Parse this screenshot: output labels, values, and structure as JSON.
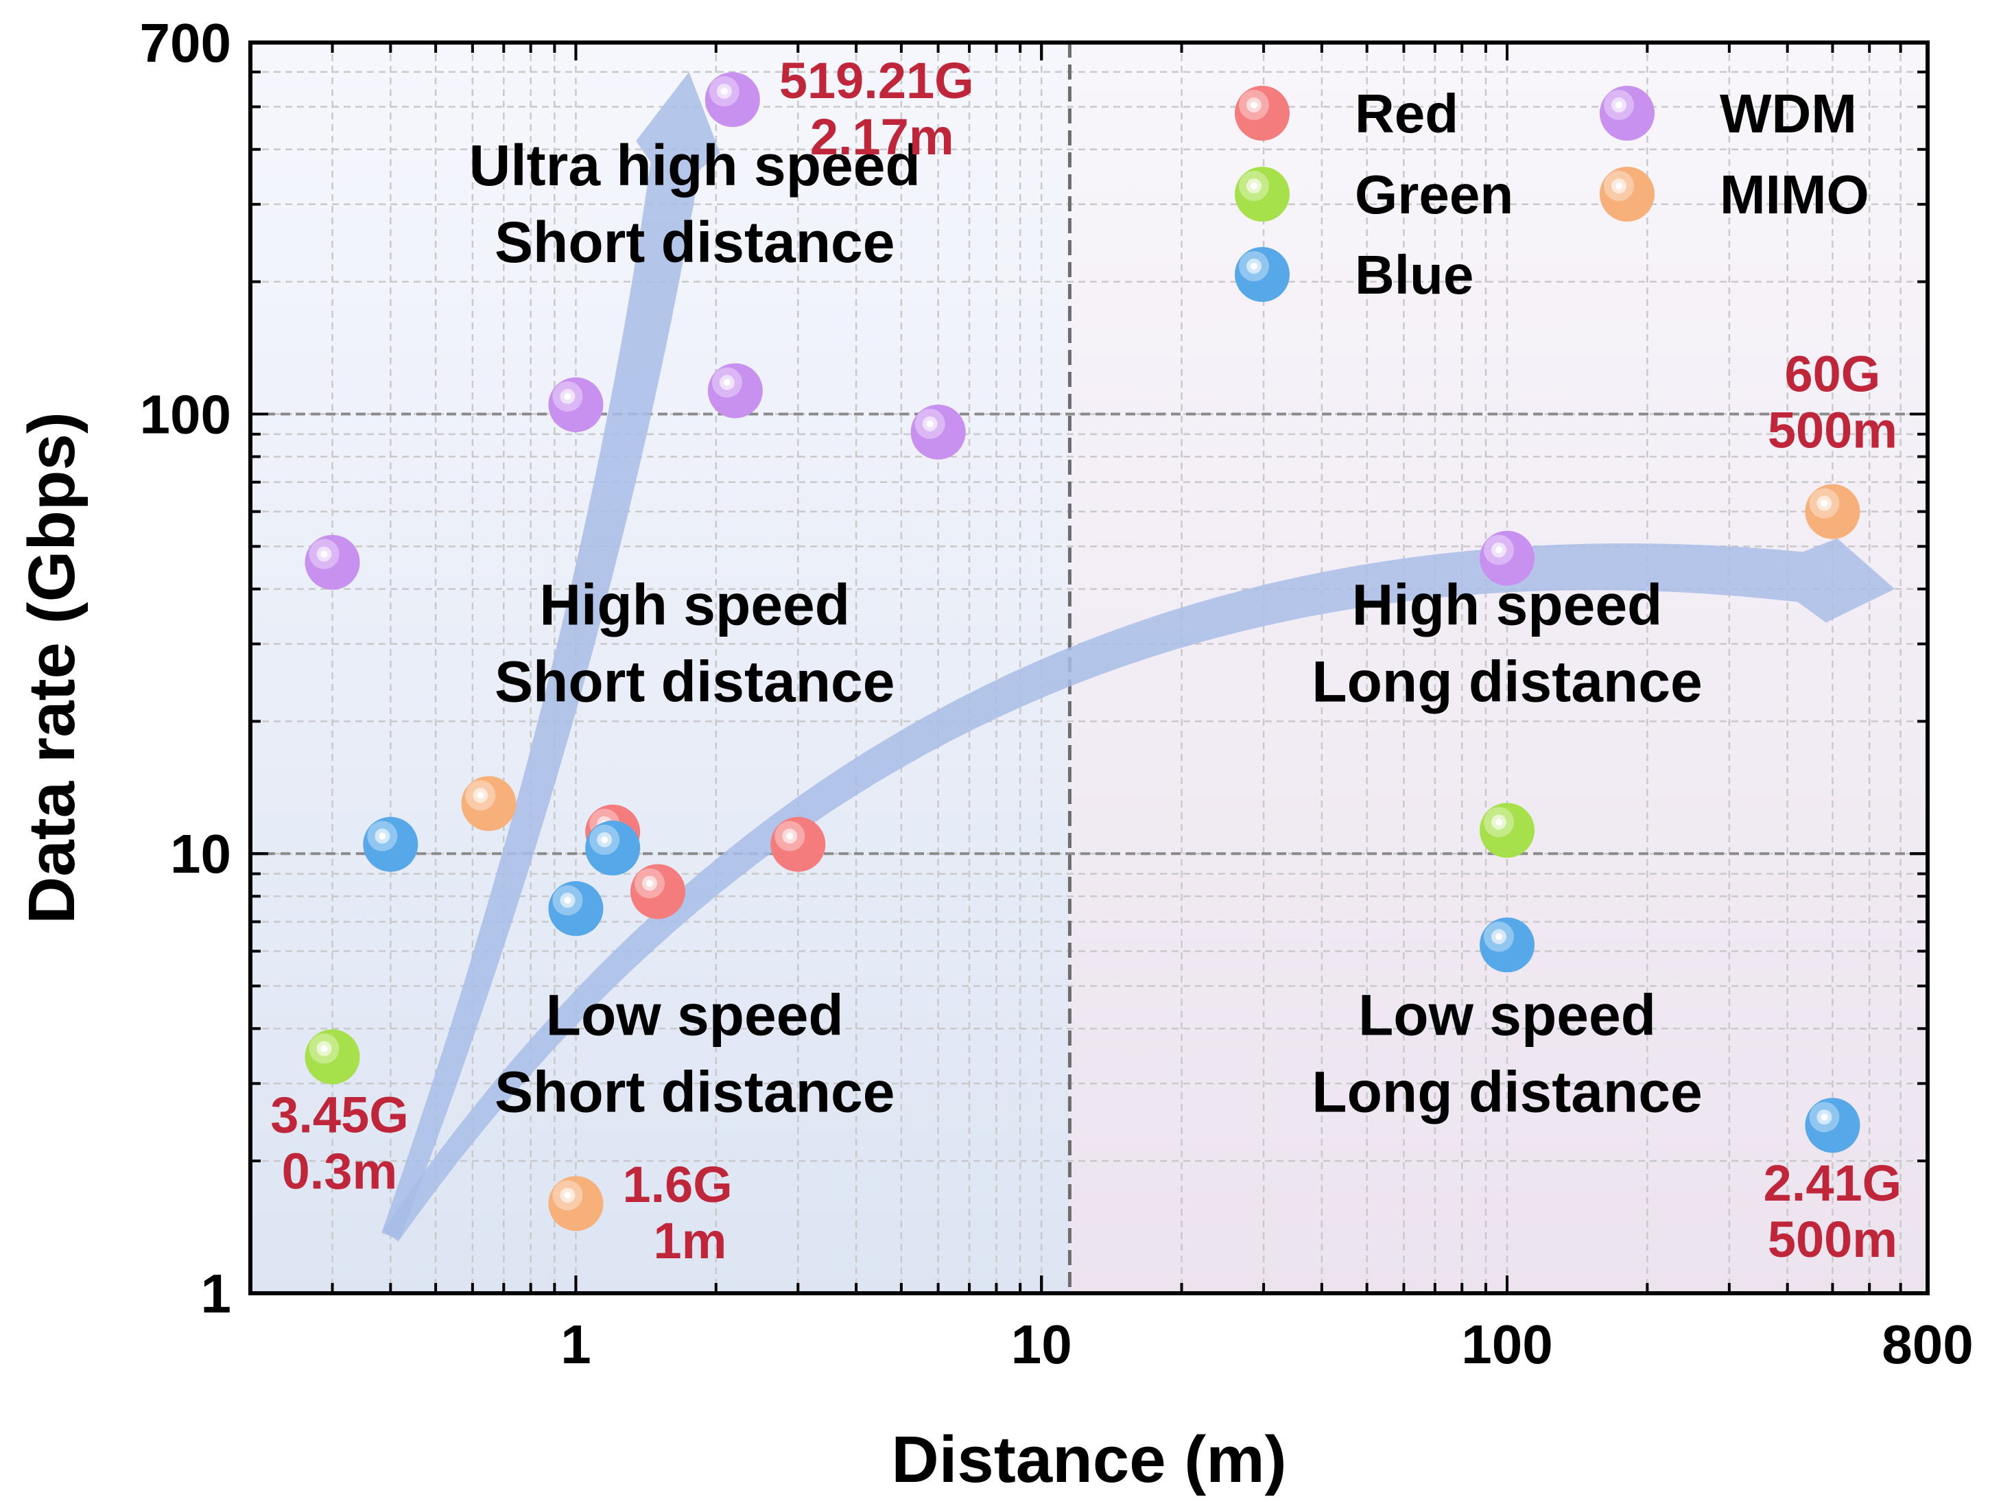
{
  "chart_data": {
    "type": "scatter",
    "xlabel": "Distance (m)",
    "ylabel": "Data rate (Gbps)",
    "x_scale": "log",
    "y_scale": "log",
    "xlim": [
      0.2,
      800
    ],
    "ylim": [
      1,
      700
    ],
    "x_ticks": [
      {
        "value": 1,
        "label": "1"
      },
      {
        "value": 10,
        "label": "10"
      },
      {
        "value": 100,
        "label": "100"
      },
      {
        "value": 800,
        "label": "800"
      }
    ],
    "y_ticks": [
      {
        "value": 1,
        "label": "1"
      },
      {
        "value": 10,
        "label": "10"
      },
      {
        "value": 100,
        "label": "100"
      },
      {
        "value": 700,
        "label": "700"
      }
    ],
    "grid": true,
    "region_divider_x": 11.5,
    "region_divider_y": 10,
    "legend": {
      "position": "top-right",
      "entries": [
        {
          "series": "Red",
          "label": "Red"
        },
        {
          "series": "Green",
          "label": "Green"
        },
        {
          "series": "Blue",
          "label": "Blue"
        },
        {
          "series": "WDM",
          "label": "WDM"
        },
        {
          "series": "MIMO",
          "label": "MIMO"
        }
      ]
    },
    "series": [
      {
        "name": "Red",
        "color": "#f47c7c",
        "points": [
          {
            "x": 1.2,
            "y": 11.2
          },
          {
            "x": 1.5,
            "y": 8.2
          },
          {
            "x": 3.0,
            "y": 10.5
          }
        ]
      },
      {
        "name": "Green",
        "color": "#a6e04a",
        "points": [
          {
            "x": 0.3,
            "y": 3.45
          },
          {
            "x": 100,
            "y": 11.3
          }
        ]
      },
      {
        "name": "Blue",
        "color": "#57a8e8",
        "points": [
          {
            "x": 0.4,
            "y": 10.5
          },
          {
            "x": 1.0,
            "y": 7.5
          },
          {
            "x": 1.2,
            "y": 10.3
          },
          {
            "x": 100,
            "y": 6.2
          },
          {
            "x": 500,
            "y": 2.41
          }
        ]
      },
      {
        "name": "WDM",
        "color": "#c891f0",
        "points": [
          {
            "x": 0.3,
            "y": 46
          },
          {
            "x": 1.0,
            "y": 105
          },
          {
            "x": 2.17,
            "y": 519.21
          },
          {
            "x": 2.2,
            "y": 113
          },
          {
            "x": 6.0,
            "y": 91
          },
          {
            "x": 100,
            "y": 47
          }
        ]
      },
      {
        "name": "MIMO",
        "color": "#f7b07a",
        "points": [
          {
            "x": 0.65,
            "y": 13
          },
          {
            "x": 1.0,
            "y": 1.6
          },
          {
            "x": 500,
            "y": 60
          }
        ]
      }
    ],
    "annotations": [
      {
        "lines": [
          "519.21G",
          "2.17m"
        ],
        "x": 2.17,
        "y": 519.21,
        "anchor": "right"
      },
      {
        "lines": [
          "60G",
          "500m"
        ],
        "x": 500,
        "y": 60,
        "anchor": "above"
      },
      {
        "lines": [
          "3.45G",
          "0.3m"
        ],
        "x": 0.3,
        "y": 3.45,
        "anchor": "below"
      },
      {
        "lines": [
          "1.6G",
          "1m"
        ],
        "x": 1.0,
        "y": 1.6,
        "anchor": "right"
      },
      {
        "lines": [
          "2.41G",
          "500m"
        ],
        "x": 500,
        "y": 2.41,
        "anchor": "below"
      }
    ],
    "region_labels": [
      {
        "lines": [
          "Ultra high speed",
          "Short distance"
        ],
        "x": 1.8,
        "y": 300
      },
      {
        "lines": [
          "High speed",
          "Short distance"
        ],
        "x": 1.8,
        "y": 30
      },
      {
        "lines": [
          "Low speed",
          "Short distance"
        ],
        "x": 1.8,
        "y": 3.5
      },
      {
        "lines": [
          "High speed",
          "Long distance"
        ],
        "x": 100,
        "y": 30
      },
      {
        "lines": [
          "Low speed",
          "Long distance"
        ],
        "x": 100,
        "y": 3.5
      }
    ],
    "trend_arrows": [
      {
        "name": "ultra-high-speed-trend",
        "points": [
          [
            0.4,
            1.35
          ],
          [
            1.0,
            30
          ],
          [
            1.75,
            600
          ]
        ]
      },
      {
        "name": "long-distance-trend",
        "points": [
          [
            0.4,
            1.35
          ],
          [
            10,
            25
          ],
          [
            680,
            40
          ]
        ]
      }
    ]
  }
}
